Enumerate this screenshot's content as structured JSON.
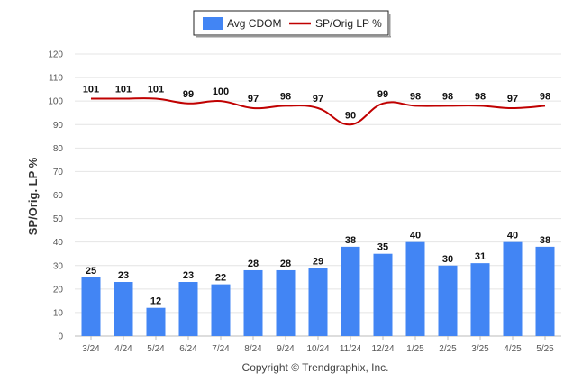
{
  "chart_data": {
    "type": "bar",
    "categories": [
      "3/24",
      "4/24",
      "5/24",
      "6/24",
      "7/24",
      "8/24",
      "9/24",
      "10/24",
      "11/24",
      "12/24",
      "1/25",
      "2/25",
      "3/25",
      "4/25",
      "5/25"
    ],
    "series": [
      {
        "name": "Avg CDOM",
        "type": "bar",
        "color": "#4285f4",
        "values": [
          25,
          23,
          12,
          23,
          22,
          28,
          28,
          29,
          38,
          35,
          40,
          30,
          31,
          40,
          38
        ]
      },
      {
        "name": "SP/Orig LP %",
        "type": "line",
        "color": "#c00000",
        "values": [
          101,
          101,
          101,
          99,
          100,
          97,
          98,
          97,
          90,
          99,
          98,
          98,
          98,
          97,
          98
        ]
      }
    ],
    "ylabel": "SP/Orig. LP %",
    "xlabel": "",
    "ylim": [
      0,
      120
    ],
    "yticks": [
      0,
      10,
      20,
      30,
      40,
      50,
      60,
      70,
      80,
      90,
      100,
      110,
      120
    ],
    "grid": true,
    "legend": "top-center",
    "credit": "Copyright © Trendgraphix, Inc."
  }
}
